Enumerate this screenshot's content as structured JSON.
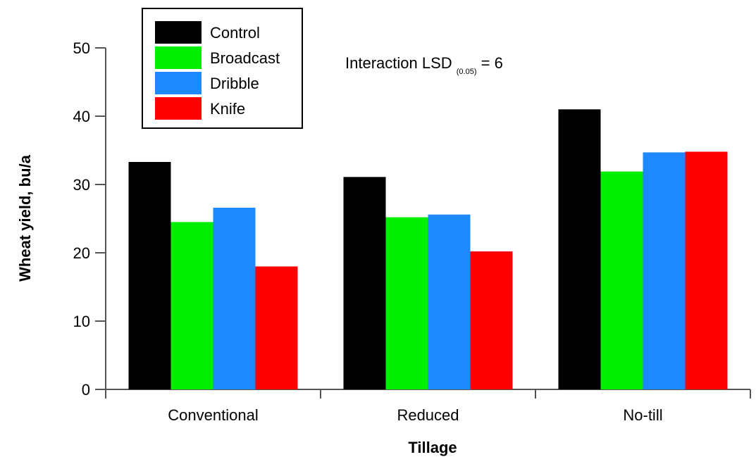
{
  "chart_data": {
    "type": "bar",
    "categories": [
      "Conventional",
      "Reduced",
      "No-till"
    ],
    "series": [
      {
        "name": "Control",
        "values": [
          33.3,
          31.1,
          41.0
        ]
      },
      {
        "name": "Broadcast",
        "values": [
          24.5,
          25.2,
          31.9
        ]
      },
      {
        "name": "Dribble",
        "values": [
          26.6,
          25.6,
          34.7
        ]
      },
      {
        "name": "Knife",
        "values": [
          18.0,
          20.2,
          34.8
        ]
      }
    ],
    "colors": [
      "#000000",
      "#00ee00",
      "#1e88ff",
      "#ff0000"
    ],
    "xlabel": "Tillage",
    "ylabel": "Wheat yield, bu/a",
    "ylim": [
      0,
      50
    ],
    "yticks": [
      0,
      10,
      20,
      30,
      40,
      50
    ],
    "legend_position": "top-left",
    "grid": false,
    "annotation": {
      "text": "Interaction LSD",
      "subscript": "(0.05)",
      "suffix": " = 6"
    }
  }
}
